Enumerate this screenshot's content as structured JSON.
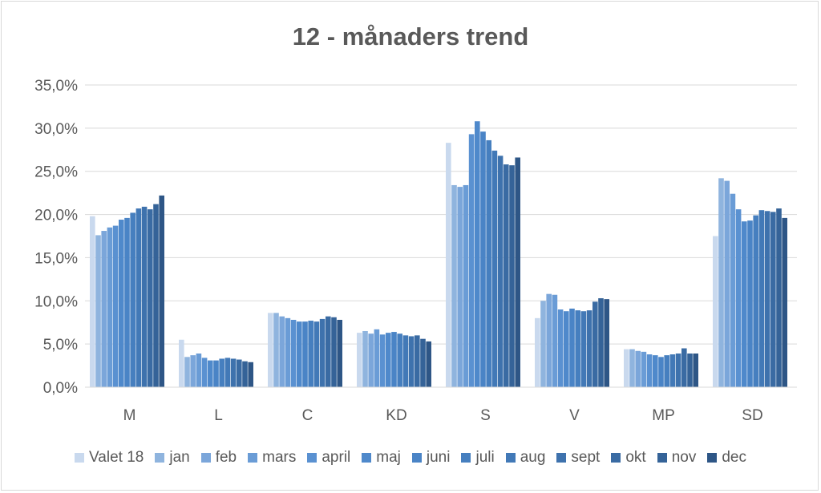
{
  "chart_data": {
    "type": "bar",
    "title": "12 - månaders trend",
    "xlabel": "",
    "ylabel": "",
    "ylim": [
      0,
      35
    ],
    "yticks": [
      "0,0%",
      "5,0%",
      "10,0%",
      "15,0%",
      "20,0%",
      "25,0%",
      "30,0%",
      "35,0%"
    ],
    "grid": true,
    "legend_position": "bottom",
    "categories": [
      "M",
      "L",
      "C",
      "KD",
      "S",
      "V",
      "MP",
      "SD"
    ],
    "series": [
      {
        "name": "Valet 18",
        "color": "#c9d9ee",
        "values": [
          19.8,
          5.5,
          8.6,
          6.3,
          28.3,
          8.0,
          4.4,
          17.5
        ]
      },
      {
        "name": "jan",
        "color": "#8fb4de",
        "values": [
          17.6,
          3.5,
          8.6,
          6.5,
          23.4,
          10.0,
          4.4,
          24.2
        ]
      },
      {
        "name": "feb",
        "color": "#7ba6da",
        "values": [
          18.1,
          3.7,
          8.2,
          6.2,
          23.2,
          10.8,
          4.2,
          23.9
        ]
      },
      {
        "name": "mars",
        "color": "#6a9cd6",
        "values": [
          18.5,
          3.9,
          8.0,
          6.7,
          23.4,
          10.7,
          4.1,
          22.4
        ]
      },
      {
        "name": "april",
        "color": "#5a91d1",
        "values": [
          18.7,
          3.4,
          7.8,
          6.1,
          29.3,
          9.0,
          3.8,
          20.6
        ]
      },
      {
        "name": "maj",
        "color": "#4f89cb",
        "values": [
          19.4,
          3.1,
          7.6,
          6.3,
          30.8,
          8.8,
          3.7,
          19.2
        ]
      },
      {
        "name": "juni",
        "color": "#4a84c6",
        "values": [
          19.6,
          3.1,
          7.6,
          6.4,
          29.6,
          9.1,
          3.5,
          19.3
        ]
      },
      {
        "name": "juli",
        "color": "#467fbf",
        "values": [
          20.2,
          3.3,
          7.7,
          6.2,
          28.6,
          8.9,
          3.7,
          19.9
        ]
      },
      {
        "name": "aug",
        "color": "#4279b7",
        "values": [
          20.7,
          3.4,
          7.6,
          6.0,
          27.4,
          8.8,
          3.8,
          20.5
        ]
      },
      {
        "name": "sept",
        "color": "#3e72ad",
        "values": [
          20.9,
          3.3,
          7.9,
          5.9,
          26.8,
          8.9,
          3.9,
          20.4
        ]
      },
      {
        "name": "okt",
        "color": "#3a6ba3",
        "values": [
          20.6,
          3.2,
          8.2,
          6.0,
          25.8,
          9.9,
          4.5,
          20.3
        ]
      },
      {
        "name": "nov",
        "color": "#356398",
        "values": [
          21.2,
          3.0,
          8.1,
          5.6,
          25.7,
          10.3,
          3.9,
          20.7
        ]
      },
      {
        "name": "dec",
        "color": "#2e5686",
        "values": [
          22.2,
          2.9,
          7.8,
          5.3,
          26.6,
          10.2,
          3.9,
          19.6
        ]
      }
    ]
  }
}
